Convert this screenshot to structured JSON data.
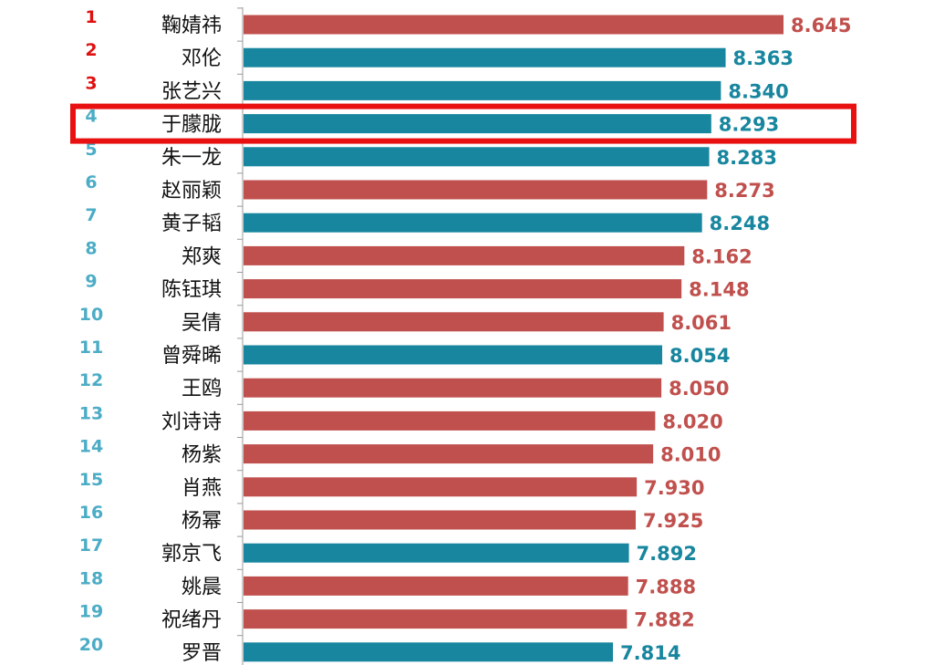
{
  "chart_data": {
    "type": "bar",
    "orientation": "horizontal",
    "categories": [
      "鞠婧祎",
      "邓伦",
      "张艺兴",
      "于朦胧",
      "朱一龙",
      "赵丽颖",
      "黄子韬",
      "郑爽",
      "陈钰琪",
      "吴倩",
      "曾舜晞",
      "王鸥",
      "刘诗诗",
      "杨紫",
      "肖燕",
      "杨幂",
      "郭京飞",
      "姚晨",
      "祝绪丹",
      "罗晋"
    ],
    "ranks": [
      "1",
      "2",
      "3",
      "4",
      "5",
      "6",
      "7",
      "8",
      "9",
      "10",
      "11",
      "12",
      "13",
      "14",
      "15",
      "16",
      "17",
      "18",
      "19",
      "20"
    ],
    "values": [
      8.645,
      8.363,
      8.34,
      8.293,
      8.283,
      8.273,
      8.248,
      8.162,
      8.148,
      8.061,
      8.054,
      8.05,
      8.02,
      8.01,
      7.93,
      7.925,
      7.892,
      7.888,
      7.882,
      7.814
    ],
    "value_labels": [
      "8.645",
      "8.363",
      "8.340",
      "8.293",
      "8.283",
      "8.273",
      "8.248",
      "8.162",
      "8.148",
      "8.061",
      "8.054",
      "8.050",
      "8.020",
      "8.010",
      "7.930",
      "7.925",
      "7.892",
      "7.888",
      "7.882",
      "7.814"
    ],
    "groups": [
      "female",
      "male",
      "male",
      "male",
      "male",
      "female",
      "male",
      "female",
      "female",
      "female",
      "male",
      "female",
      "female",
      "female",
      "female",
      "female",
      "male",
      "female",
      "female",
      "male"
    ],
    "group_colors": {
      "female": "#c0504d",
      "male": "#17869e"
    },
    "rank_colors": {
      "top3": "#e01010",
      "other": "#4bacc6"
    },
    "highlight_index": 3,
    "highlight_color": "#e81010",
    "x_axis_range": [
      0,
      8.645
    ],
    "grid": false,
    "legend": "none"
  }
}
